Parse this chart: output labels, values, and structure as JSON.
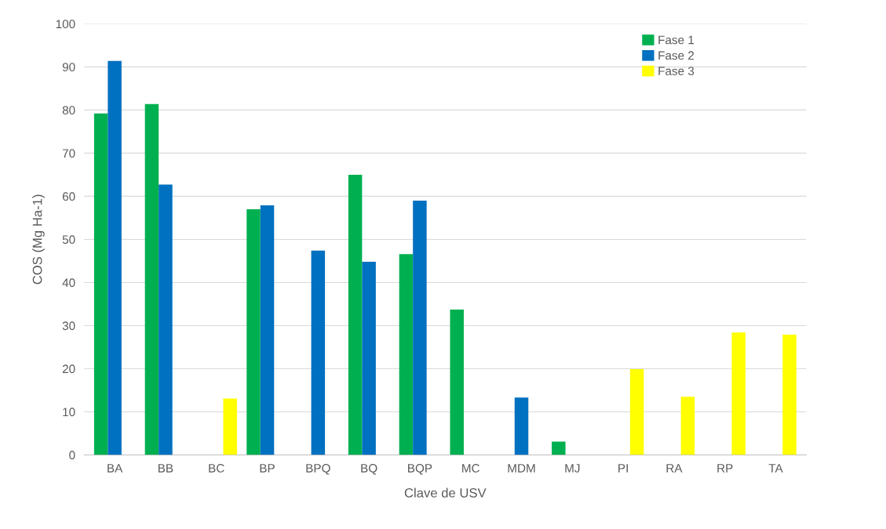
{
  "chart_data": {
    "type": "bar",
    "xlabel": "Clave de USV",
    "ylabel": "COS (Mg Ha-1)",
    "categories": [
      "BA",
      "BB",
      "BC",
      "BP",
      "BPQ",
      "BQ",
      "BQP",
      "MC",
      "MDM",
      "MJ",
      "PI",
      "RA",
      "RP",
      "TA"
    ],
    "series": [
      {
        "name": "Fase 1",
        "color": "#00b050",
        "values": [
          79.2,
          81.4,
          null,
          57.0,
          null,
          65.0,
          46.6,
          33.7,
          null,
          3.1,
          null,
          null,
          null,
          null
        ]
      },
      {
        "name": "Fase 2",
        "color": "#0070c0",
        "values": [
          91.4,
          62.7,
          null,
          57.9,
          47.4,
          44.8,
          59.0,
          null,
          13.3,
          null,
          null,
          null,
          null,
          null
        ]
      },
      {
        "name": "Fase 3",
        "color": "#ffff00",
        "values": [
          null,
          null,
          13.1,
          null,
          null,
          null,
          null,
          null,
          null,
          null,
          19.9,
          13.5,
          28.4,
          27.9
        ]
      }
    ],
    "ylim": [
      0,
      100
    ],
    "yticks": [
      0,
      10,
      20,
      30,
      40,
      50,
      60,
      70,
      80,
      90,
      100
    ],
    "grid": "y",
    "legend": "top right"
  }
}
